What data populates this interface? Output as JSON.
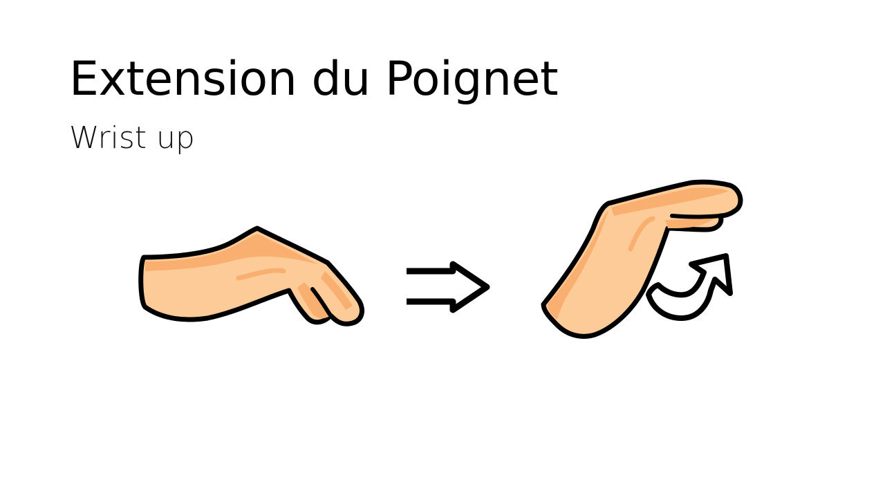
{
  "slide": {
    "title": "Extension du Poignet",
    "subtitle": "Wrist up"
  },
  "illustration": {
    "left_icon": "hand-resting-flat-icon",
    "middle_icon": "double-arrow-right-icon",
    "right_icon": "hand-wrist-extended-icon",
    "motion_icon": "curved-arrow-up-icon",
    "colors": {
      "skin_light": "#FDCB97",
      "skin_shadow": "#F8AF70",
      "outline": "#000000",
      "background": "#FFFFFF"
    }
  }
}
